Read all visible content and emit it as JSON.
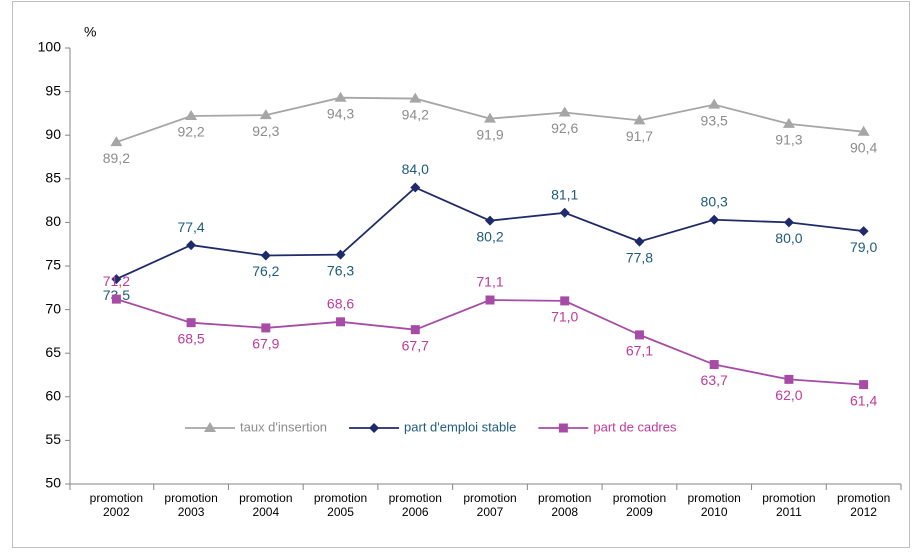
{
  "chart_data": {
    "type": "line",
    "y_label": "%",
    "categories": [
      "promotion 2002",
      "promotion 2003",
      "promotion 2004",
      "promotion 2005",
      "promotion 2006",
      "promotion 2007",
      "promotion 2008",
      "promotion 2009",
      "promotion 2010",
      "promotion 2011",
      "promotion 2012"
    ],
    "series": [
      {
        "name": "taux d'insertion",
        "color": "#a6a6a6",
        "label_color": "#8c8c8c",
        "marker": "triangle",
        "values": [
          89.2,
          92.2,
          92.3,
          94.3,
          94.2,
          91.9,
          92.6,
          91.7,
          93.5,
          91.3,
          90.4
        ],
        "value_labels": [
          "89,2",
          "92,2",
          "92,3",
          "94,3",
          "94,2",
          "91,9",
          "92,6",
          "91,7",
          "93,5",
          "91,3",
          "90,4"
        ]
      },
      {
        "name": "part d'emploi stable",
        "color": "#1f2a6b",
        "label_color": "#1f5b7a",
        "marker": "diamond",
        "values": [
          73.5,
          77.4,
          76.2,
          76.3,
          84.0,
          80.2,
          81.1,
          77.8,
          80.3,
          80.0,
          79.0
        ],
        "value_labels": [
          "73,5",
          "77,4",
          "76,2",
          "76,3",
          "84,0",
          "80,2",
          "81,1",
          "77,8",
          "80,3",
          "80,0",
          "79,0"
        ]
      },
      {
        "name": "part de cadres",
        "color": "#a64ca6",
        "label_color": "#c0399b",
        "marker": "square",
        "values": [
          71.2,
          68.5,
          67.9,
          68.6,
          67.7,
          71.1,
          71.0,
          67.1,
          63.7,
          62.0,
          61.4
        ],
        "value_labels": [
          "71,2",
          "68,5",
          "67,9",
          "68,6",
          "67,7",
          "71,1",
          "71,0",
          "67,1",
          "63,7",
          "62,0",
          "61,4"
        ]
      }
    ],
    "ylim": [
      50,
      100
    ],
    "yticks": [
      50,
      55,
      60,
      65,
      70,
      75,
      80,
      85,
      90,
      95,
      100
    ],
    "grid": false,
    "legend": "lower center"
  }
}
